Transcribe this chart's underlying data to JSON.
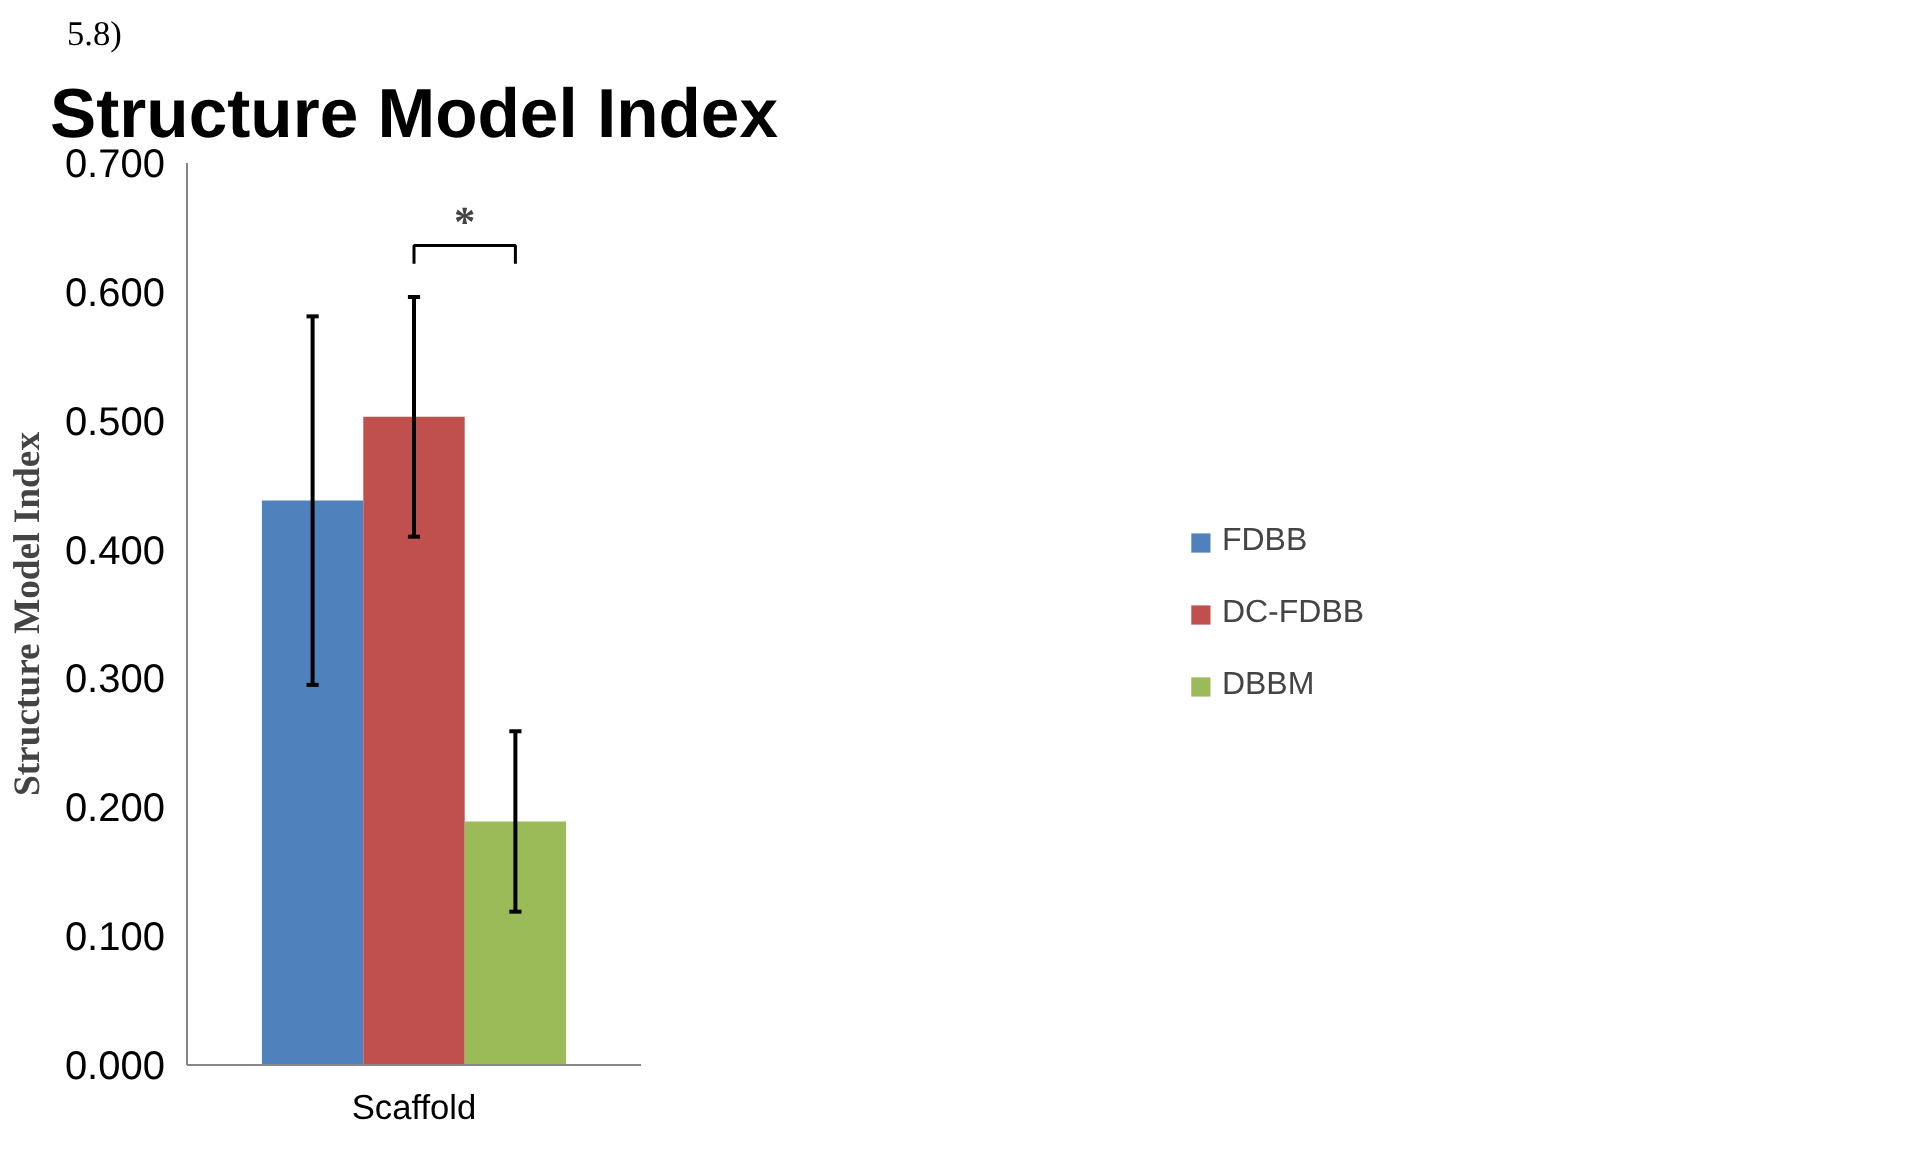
{
  "chart_data": {
    "type": "bar",
    "title": "Structure Model Index",
    "ylabel": "Structure Model Index",
    "categories": [
      "Scaffold"
    ],
    "series": [
      {
        "name": "FDBB",
        "color": "#4f81bd",
        "values": [
          0.438
        ],
        "errors": [
          [
            0.295,
            0.581
          ]
        ]
      },
      {
        "name": "DC-FDBB",
        "color": "#c0504d",
        "values": [
          0.503
        ],
        "errors": [
          [
            0.41,
            0.596
          ]
        ]
      },
      {
        "name": "DBBM",
        "color": "#9bbb59",
        "values": [
          0.189
        ],
        "errors": [
          [
            0.119,
            0.259
          ]
        ]
      }
    ],
    "ylim": [
      0,
      0.7
    ],
    "yticks": [
      {
        "value": 0,
        "label": "0.000"
      },
      {
        "value": 0.1,
        "label": "0.100"
      },
      {
        "value": 0.2,
        "label": "0.200"
      },
      {
        "value": 0.3,
        "label": "0.300"
      },
      {
        "value": 0.4,
        "label": "0.400"
      },
      {
        "value": 0.5,
        "label": "0.500"
      },
      {
        "value": 0.6,
        "label": "0.600"
      },
      {
        "value": 0.7,
        "label": "0.700"
      }
    ],
    "grid": false,
    "legend": "right",
    "annotations": [
      "5.8)",
      "*"
    ]
  }
}
